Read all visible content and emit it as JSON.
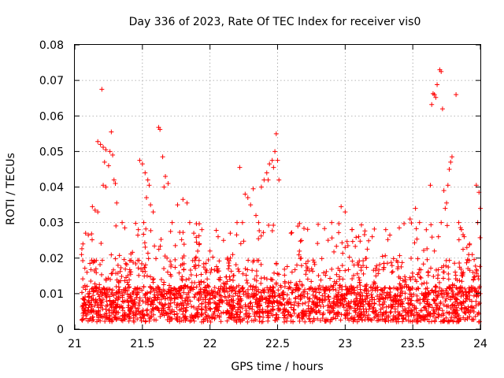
{
  "chart_data": {
    "type": "scatter",
    "title": "Day 336 of 2023, Rate Of TEC Index for receiver vis0",
    "xlabel": "GPS time / hours",
    "ylabel": "ROTI / TECUs",
    "xlim": [
      21,
      24
    ],
    "ylim": [
      0,
      0.08
    ],
    "x_ticks": [
      "21",
      "21.5",
      "22",
      "22.5",
      "23",
      "23.5",
      "24"
    ],
    "y_ticks": [
      "0",
      "0.01",
      "0.02",
      "0.03",
      "0.04",
      "0.05",
      "0.06",
      "0.07",
      "0.08"
    ],
    "grid": true,
    "marker": "+",
    "marker_color": "#ff0000",
    "series": [
      {
        "name": "ROTI",
        "points": [
          [
            21.2,
            0.0675
          ],
          [
            21.27,
            0.0555
          ],
          [
            21.17,
            0.0528
          ],
          [
            21.19,
            0.052
          ],
          [
            21.21,
            0.0512
          ],
          [
            21.23,
            0.0505
          ],
          [
            21.26,
            0.05
          ],
          [
            21.28,
            0.049
          ],
          [
            21.22,
            0.047
          ],
          [
            21.25,
            0.046
          ],
          [
            21.29,
            0.042
          ],
          [
            21.3,
            0.041
          ],
          [
            21.21,
            0.0405
          ],
          [
            21.23,
            0.04
          ],
          [
            21.31,
            0.0355
          ],
          [
            21.13,
            0.0345
          ],
          [
            21.15,
            0.0335
          ],
          [
            21.17,
            0.033
          ],
          [
            21.35,
            0.03
          ],
          [
            21.37,
            0.0285
          ],
          [
            21.08,
            0.027
          ],
          [
            21.1,
            0.0265
          ],
          [
            21.06,
            0.024
          ],
          [
            21.05,
            0.021
          ],
          [
            21.09,
            0.016
          ],
          [
            21.48,
            0.0475
          ],
          [
            21.5,
            0.0465
          ],
          [
            21.52,
            0.044
          ],
          [
            21.54,
            0.042
          ],
          [
            21.55,
            0.0405
          ],
          [
            21.53,
            0.037
          ],
          [
            21.56,
            0.035
          ],
          [
            21.58,
            0.033
          ],
          [
            21.51,
            0.03
          ],
          [
            21.47,
            0.028
          ],
          [
            21.62,
            0.0568
          ],
          [
            21.63,
            0.0562
          ],
          [
            21.65,
            0.0485
          ],
          [
            21.67,
            0.043
          ],
          [
            21.69,
            0.041
          ],
          [
            21.66,
            0.04
          ],
          [
            21.72,
            0.03
          ],
          [
            21.76,
            0.035
          ],
          [
            21.8,
            0.0365
          ],
          [
            21.83,
            0.0355
          ],
          [
            21.85,
            0.03
          ],
          [
            21.88,
            0.027
          ],
          [
            21.9,
            0.0245
          ],
          [
            21.94,
            0.028
          ],
          [
            22.0,
            0.022
          ],
          [
            22.06,
            0.026
          ],
          [
            22.1,
            0.025
          ],
          [
            22.15,
            0.027
          ],
          [
            22.2,
            0.03
          ],
          [
            22.22,
            0.0455
          ],
          [
            22.24,
            0.03
          ],
          [
            22.26,
            0.038
          ],
          [
            22.28,
            0.037
          ],
          [
            22.3,
            0.035
          ],
          [
            22.32,
            0.0395
          ],
          [
            22.34,
            0.032
          ],
          [
            22.36,
            0.03
          ],
          [
            22.38,
            0.04
          ],
          [
            22.4,
            0.042
          ],
          [
            22.42,
            0.044
          ],
          [
            22.44,
            0.0465
          ],
          [
            22.46,
            0.0475
          ],
          [
            22.47,
            0.0455
          ],
          [
            22.48,
            0.05
          ],
          [
            22.49,
            0.055
          ],
          [
            22.5,
            0.0475
          ],
          [
            22.51,
            0.042
          ],
          [
            22.43,
            0.042
          ],
          [
            22.6,
            0.027
          ],
          [
            22.65,
            0.029
          ],
          [
            22.8,
            0.0295
          ],
          [
            22.9,
            0.03
          ],
          [
            22.97,
            0.0345
          ],
          [
            23.0,
            0.033
          ],
          [
            23.05,
            0.028
          ],
          [
            23.1,
            0.026
          ],
          [
            23.2,
            0.026
          ],
          [
            23.3,
            0.028
          ],
          [
            23.4,
            0.0285
          ],
          [
            23.48,
            0.031
          ],
          [
            23.52,
            0.034
          ],
          [
            23.55,
            0.03
          ],
          [
            23.63,
            0.0405
          ],
          [
            23.64,
            0.0632
          ],
          [
            23.65,
            0.0663
          ],
          [
            23.66,
            0.066
          ],
          [
            23.67,
            0.0652
          ],
          [
            23.68,
            0.0688
          ],
          [
            23.7,
            0.073
          ],
          [
            23.71,
            0.0725
          ],
          [
            23.72,
            0.062
          ],
          [
            23.77,
            0.045
          ],
          [
            23.78,
            0.047
          ],
          [
            23.79,
            0.0485
          ],
          [
            23.82,
            0.066
          ],
          [
            23.76,
            0.0405
          ],
          [
            23.73,
            0.039
          ],
          [
            23.84,
            0.03
          ],
          [
            23.86,
            0.028
          ],
          [
            23.88,
            0.026
          ],
          [
            23.9,
            0.023
          ],
          [
            23.92,
            0.024
          ],
          [
            23.94,
            0.021
          ],
          [
            23.97,
            0.0405
          ],
          [
            23.99,
            0.0385
          ],
          [
            24.0,
            0.034
          ],
          [
            23.98,
            0.03
          ],
          [
            23.74,
            0.034
          ],
          [
            23.75,
            0.0355
          ],
          [
            23.71,
            0.03
          ],
          [
            23.69,
            0.026
          ],
          [
            23.66,
            0.022
          ]
        ],
        "dense_band": {
          "x_range": [
            21.05,
            24.0
          ],
          "lower_envelope": 0.002,
          "core_upper": 0.012,
          "spread_upper": 0.03,
          "approx_count": 2400
        }
      }
    ]
  }
}
